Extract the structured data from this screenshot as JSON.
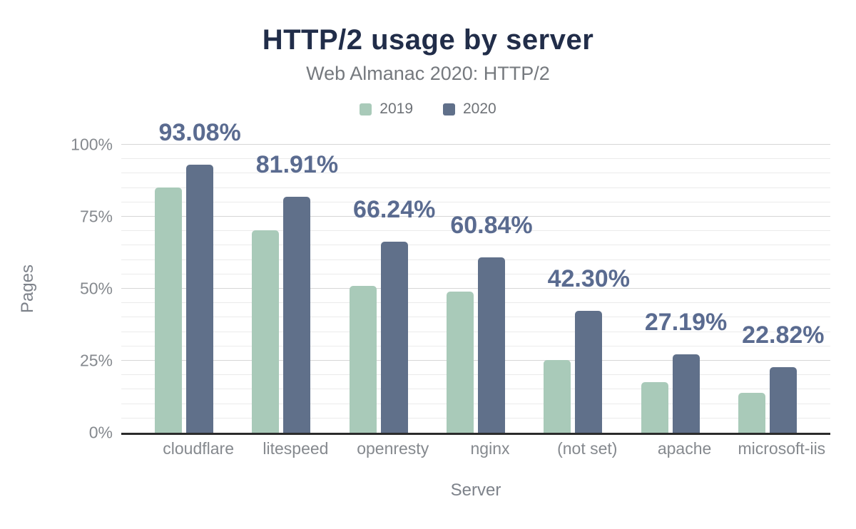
{
  "chart_data": {
    "type": "bar",
    "title": "HTTP/2 usage by server",
    "subtitle": "Web Almanac 2020: HTTP/2",
    "xlabel": "Server",
    "ylabel": "Pages",
    "categories": [
      "cloudflare",
      "litespeed",
      "openresty",
      "nginx",
      "(not set)",
      "apache",
      "microsoft-iis"
    ],
    "series": [
      {
        "name": "2019",
        "color": "#a9cab9",
        "values": [
          85.1,
          70.4,
          51.0,
          48.9,
          25.3,
          17.7,
          13.9
        ]
      },
      {
        "name": "2020",
        "color": "#60708a",
        "values": [
          93.08,
          81.91,
          66.24,
          60.84,
          42.3,
          27.19,
          22.82
        ],
        "data_labels": [
          "93.08%",
          "81.91%",
          "66.24%",
          "60.84%",
          "42.30%",
          "27.19%",
          "22.82%"
        ]
      }
    ],
    "y_ticks": [
      {
        "value": 0,
        "label": "0%"
      },
      {
        "value": 25,
        "label": "25%"
      },
      {
        "value": 50,
        "label": "50%"
      },
      {
        "value": 75,
        "label": "75%"
      },
      {
        "value": 100,
        "label": "100%"
      }
    ],
    "ylim": [
      0,
      100
    ],
    "grid": {
      "visible": true,
      "minor_step": 5,
      "major_step": 25
    },
    "legend": {
      "position": "top"
    },
    "colors": {
      "title": "#212d49",
      "subtitle": "#75797e",
      "legend_text": "#6e7277",
      "data_label": "#5a6b90",
      "axis_text": "#85898e",
      "axis_title_text": "#7d828a",
      "gridline_major": "#d6d6d6",
      "gridline_minor": "#ebebeb",
      "baseline": "#2b2b2b",
      "background": "#ffffff"
    }
  }
}
